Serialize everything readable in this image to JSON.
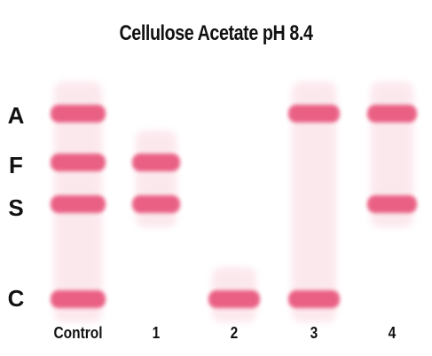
{
  "figure": {
    "title": "Cellulose Acetate pH 8.4",
    "band_color": "#e8547c",
    "background_color": "#ffffff",
    "text_color": "#111111"
  },
  "rows": [
    {
      "id": "A",
      "label": "A"
    },
    {
      "id": "F",
      "label": "F"
    },
    {
      "id": "S",
      "label": "S"
    },
    {
      "id": "C",
      "label": "C"
    }
  ],
  "lanes": [
    {
      "id": "control",
      "label": "Control",
      "bands": [
        "A",
        "F",
        "S",
        "C"
      ]
    },
    {
      "id": "1",
      "label": "1",
      "bands": [
        "F",
        "S"
      ]
    },
    {
      "id": "2",
      "label": "2",
      "bands": [
        "C"
      ]
    },
    {
      "id": "3",
      "label": "3",
      "bands": [
        "A",
        "C"
      ]
    },
    {
      "id": "4",
      "label": "4",
      "bands": [
        "A",
        "S"
      ]
    }
  ]
}
